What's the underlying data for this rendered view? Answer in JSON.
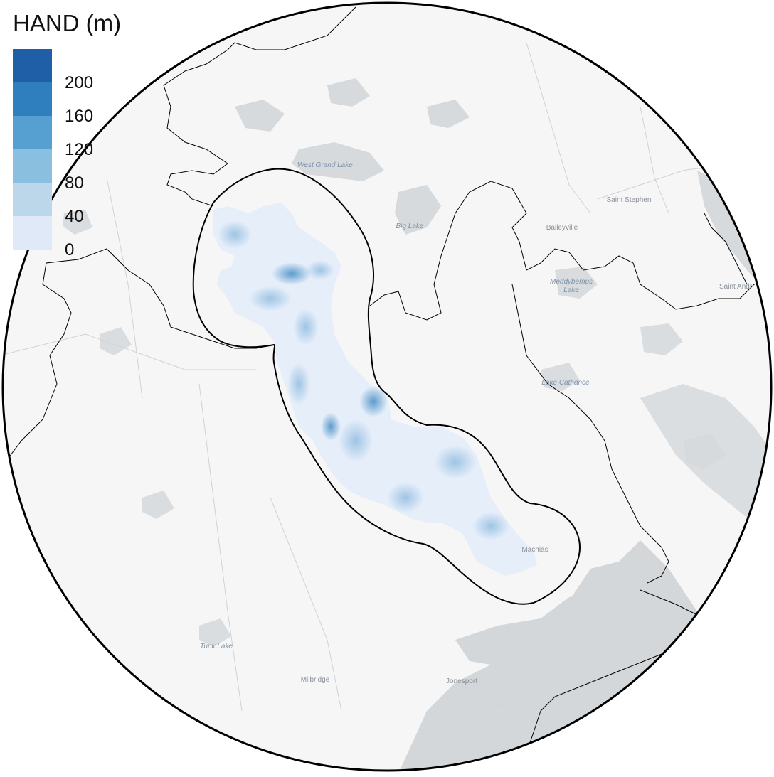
{
  "legend": {
    "title": "HAND (m)",
    "ticks": [
      "200",
      "160",
      "120",
      "80",
      "40",
      "0"
    ],
    "colors": [
      "#1f5fa8",
      "#2f7fbe",
      "#56a0d1",
      "#8abfe0",
      "#bdd7ea",
      "#dfe9f7"
    ]
  },
  "map": {
    "labels": {
      "west_grand_lake": "West Grand Lake",
      "big_lake": "Big Lake",
      "saint_stephen": "Saint Stephen",
      "baileyville": "Baileyville",
      "meddybemps_line1": "Meddybemps",
      "meddybemps_line2": "Lake",
      "saint_andrews": "Saint Andr",
      "lake_cathance": "Lake Cathance",
      "machias": "Machias",
      "tunk_lake": "Tunk Lake",
      "milbridge": "Milbridge",
      "jonesport": "Jonesport"
    },
    "colors": {
      "land": "#f4f5f4",
      "water": "#d6dadd",
      "basemap_line": "#c9ccd0",
      "boundary": "#000000",
      "hand_low": "#e6eefa",
      "hand_high": "#1f5fa8"
    }
  }
}
